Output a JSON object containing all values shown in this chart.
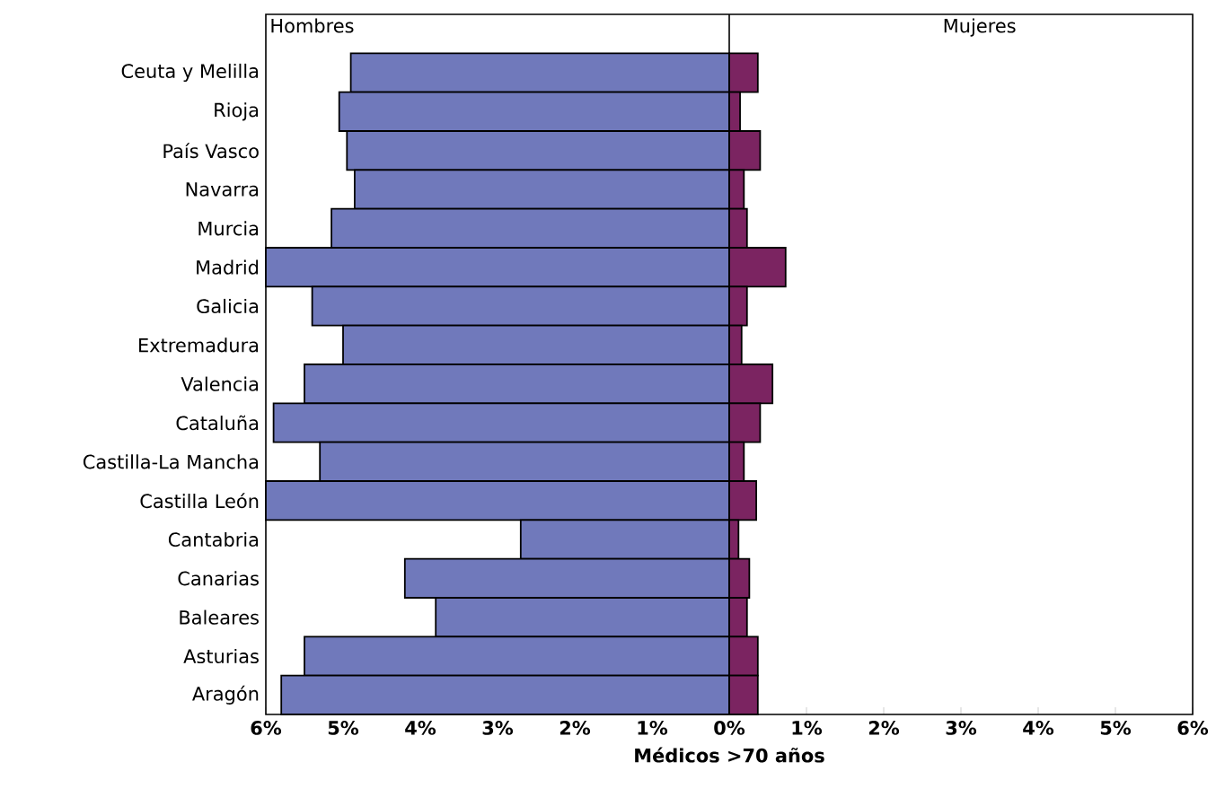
{
  "chart_data": {
    "type": "bar",
    "orientation": "horizontal",
    "xlabel": "Médicos >70 años",
    "categories": [
      "Ceuta y Melilla",
      "Rioja",
      "País Vasco",
      "Navarra",
      "Murcia",
      "Madrid",
      "Galicia",
      "Extremadura",
      "Valencia",
      "Cataluña",
      "Castilla-La Mancha",
      "Castilla León",
      "Cantabria",
      "Canarias",
      "Baleares",
      "Asturias",
      "Aragón"
    ],
    "series": [
      {
        "name": "Hombres",
        "color": "#7079bb",
        "values": [
          -4.9,
          -5.05,
          -4.95,
          -4.85,
          -5.15,
          -6.0,
          -5.4,
          -5.0,
          -5.5,
          -5.9,
          -5.3,
          -6.0,
          -2.7,
          -4.2,
          -3.8,
          -5.5,
          -5.8
        ]
      },
      {
        "name": "Mujeres",
        "color": "#7b2461",
        "values": [
          0.37,
          0.14,
          0.4,
          0.19,
          0.23,
          0.73,
          0.23,
          0.16,
          0.56,
          0.4,
          0.19,
          0.35,
          0.12,
          0.26,
          0.23,
          0.37,
          0.37
        ]
      }
    ],
    "xlim": [
      -6,
      6
    ],
    "xticks": [
      {
        "value": -6,
        "label": "6%"
      },
      {
        "value": -5,
        "label": "5%"
      },
      {
        "value": -4,
        "label": "4%"
      },
      {
        "value": -3,
        "label": "3%"
      },
      {
        "value": -2,
        "label": "2%"
      },
      {
        "value": -1,
        "label": "1%"
      },
      {
        "value": 0,
        "label": "0%"
      },
      {
        "value": 1,
        "label": "1%"
      },
      {
        "value": 2,
        "label": "2%"
      },
      {
        "value": 3,
        "label": "3%"
      },
      {
        "value": 4,
        "label": "4%"
      },
      {
        "value": 5,
        "label": "5%"
      },
      {
        "value": 6,
        "label": "6%"
      }
    ],
    "ref_lines": [
      {
        "axis": "x",
        "value": 0
      }
    ],
    "stacked": true,
    "grid": false,
    "legend": false
  }
}
